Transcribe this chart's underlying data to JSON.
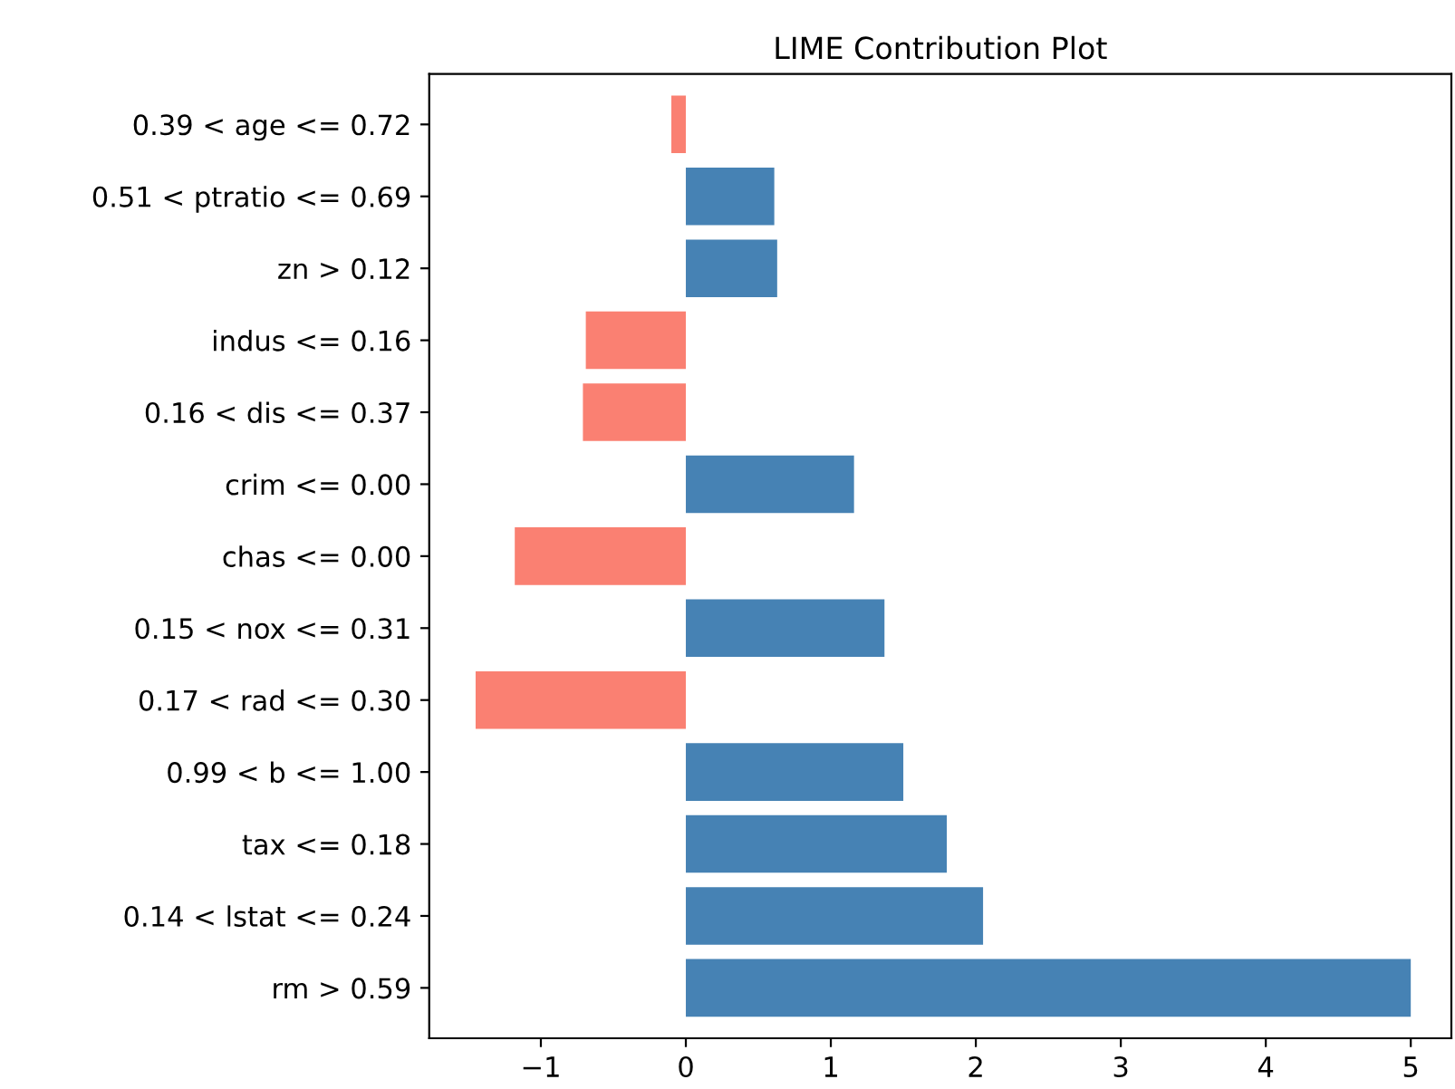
{
  "chart_data": {
    "type": "bar",
    "orientation": "horizontal",
    "title": "LIME Contribution Plot",
    "categories": [
      "0.39 < age <= 0.72",
      "0.51 < ptratio <= 0.69",
      "zn > 0.12",
      "indus <= 0.16",
      "0.16 < dis <= 0.37",
      "crim <= 0.00",
      "chas <= 0.00",
      "0.15 < nox <= 0.31",
      "0.17 < rad <= 0.30",
      "0.99 < b <= 1.00",
      "tax <= 0.18",
      "0.14 < lstat <= 0.24",
      "rm > 0.59"
    ],
    "values": [
      -0.1,
      0.61,
      0.63,
      -0.69,
      -0.71,
      1.16,
      -1.18,
      1.37,
      -1.45,
      1.5,
      1.8,
      2.05,
      5.0
    ],
    "colors": [
      "#fa8072",
      "#4682b4",
      "#4682b4",
      "#fa8072",
      "#fa8072",
      "#4682b4",
      "#fa8072",
      "#4682b4",
      "#fa8072",
      "#4682b4",
      "#4682b4",
      "#4682b4",
      "#4682b4"
    ],
    "xlim": [
      -1.77,
      5.28
    ],
    "xticks": [
      {
        "value": -1,
        "label": "−1"
      },
      0,
      1,
      2,
      3,
      4,
      5
    ],
    "grid": false,
    "legend": false
  }
}
